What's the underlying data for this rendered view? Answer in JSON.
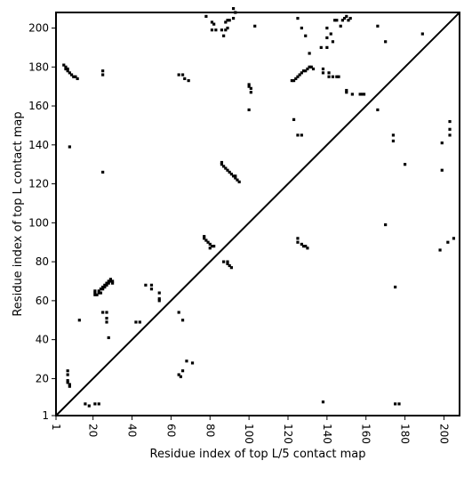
{
  "chart_data": {
    "type": "scatter",
    "title": "",
    "xlabel": "Residue index of top L/5 contact map",
    "ylabel": "Residue index of top L contact map",
    "xlim": [
      1,
      208
    ],
    "ylim": [
      1,
      208
    ],
    "xticks": [
      1,
      20,
      40,
      60,
      80,
      100,
      120,
      140,
      160,
      180,
      200
    ],
    "yticks": [
      1,
      20,
      40,
      60,
      80,
      100,
      120,
      140,
      160,
      180,
      200
    ],
    "diagonal": true,
    "grid": false,
    "marker_color": "#000000",
    "series": [
      {
        "values": [
          [
            5,
            181
          ],
          [
            6,
            180
          ],
          [
            6,
            179
          ],
          [
            7,
            179
          ],
          [
            7,
            178
          ],
          [
            8,
            177
          ],
          [
            9,
            176
          ],
          [
            10,
            175
          ],
          [
            11,
            175
          ],
          [
            12,
            174
          ],
          [
            8,
            139
          ],
          [
            7,
            24
          ],
          [
            7,
            22
          ],
          [
            7,
            19
          ],
          [
            7,
            18
          ],
          [
            8,
            17
          ],
          [
            8,
            16
          ],
          [
            16,
            7
          ],
          [
            18,
            6
          ],
          [
            21,
            7
          ],
          [
            23,
            7
          ],
          [
            25,
            178
          ],
          [
            25,
            176
          ],
          [
            25,
            126
          ],
          [
            25,
            54
          ],
          [
            27,
            54
          ],
          [
            27,
            51
          ],
          [
            27,
            49
          ],
          [
            28,
            41
          ],
          [
            13,
            50
          ],
          [
            21,
            65
          ],
          [
            21,
            64
          ],
          [
            21,
            63
          ],
          [
            22,
            63
          ],
          [
            23,
            64
          ],
          [
            23,
            65
          ],
          [
            24,
            64
          ],
          [
            24,
            66
          ],
          [
            25,
            66
          ],
          [
            25,
            67
          ],
          [
            26,
            67
          ],
          [
            26,
            68
          ],
          [
            27,
            68
          ],
          [
            27,
            69
          ],
          [
            28,
            69
          ],
          [
            28,
            70
          ],
          [
            29,
            70
          ],
          [
            29,
            71
          ],
          [
            30,
            70
          ],
          [
            30,
            69
          ],
          [
            42,
            49
          ],
          [
            44,
            49
          ],
          [
            47,
            68
          ],
          [
            50,
            68
          ],
          [
            50,
            66
          ],
          [
            54,
            64
          ],
          [
            54,
            61
          ],
          [
            54,
            60
          ],
          [
            64,
            54
          ],
          [
            65,
            21
          ],
          [
            66,
            24
          ],
          [
            64,
            22
          ],
          [
            66,
            50
          ],
          [
            68,
            29
          ],
          [
            71,
            28
          ],
          [
            64,
            176
          ],
          [
            66,
            176
          ],
          [
            67,
            174
          ],
          [
            69,
            173
          ],
          [
            77,
            93
          ],
          [
            77,
            92
          ],
          [
            78,
            91
          ],
          [
            79,
            90
          ],
          [
            80,
            89
          ],
          [
            81,
            88
          ],
          [
            82,
            88
          ],
          [
            80,
            87
          ],
          [
            78,
            206
          ],
          [
            81,
            203
          ],
          [
            82,
            202
          ],
          [
            81,
            199
          ],
          [
            83,
            199
          ],
          [
            86,
            199
          ],
          [
            88,
            199
          ],
          [
            87,
            196
          ],
          [
            89,
            200
          ],
          [
            88,
            203
          ],
          [
            89,
            204
          ],
          [
            90,
            204
          ],
          [
            92,
            205
          ],
          [
            93,
            208
          ],
          [
            92,
            210
          ],
          [
            86,
            131
          ],
          [
            86,
            130
          ],
          [
            87,
            129
          ],
          [
            88,
            128
          ],
          [
            89,
            127
          ],
          [
            90,
            126
          ],
          [
            91,
            125
          ],
          [
            92,
            124
          ],
          [
            93,
            124
          ],
          [
            93,
            123
          ],
          [
            94,
            122
          ],
          [
            95,
            121
          ],
          [
            87,
            80
          ],
          [
            89,
            80
          ],
          [
            89,
            79
          ],
          [
            90,
            78
          ],
          [
            91,
            77
          ],
          [
            100,
            171
          ],
          [
            100,
            170
          ],
          [
            101,
            169
          ],
          [
            101,
            167
          ],
          [
            100,
            158
          ],
          [
            103,
            201
          ],
          [
            122,
            173
          ],
          [
            123,
            173
          ],
          [
            124,
            174
          ],
          [
            125,
            175
          ],
          [
            126,
            176
          ],
          [
            127,
            177
          ],
          [
            128,
            178
          ],
          [
            129,
            178
          ],
          [
            130,
            179
          ],
          [
            131,
            180
          ],
          [
            132,
            180
          ],
          [
            133,
            179
          ],
          [
            123,
            153
          ],
          [
            125,
            145
          ],
          [
            127,
            145
          ],
          [
            125,
            92
          ],
          [
            125,
            90
          ],
          [
            127,
            89
          ],
          [
            128,
            88
          ],
          [
            129,
            88
          ],
          [
            130,
            87
          ],
          [
            125,
            205
          ],
          [
            127,
            200
          ],
          [
            129,
            196
          ],
          [
            131,
            187
          ],
          [
            137,
            190
          ],
          [
            138,
            179
          ],
          [
            138,
            177
          ],
          [
            140,
            200
          ],
          [
            140,
            195
          ],
          [
            140,
            190
          ],
          [
            141,
            177
          ],
          [
            141,
            175
          ],
          [
            143,
            175
          ],
          [
            145,
            175
          ],
          [
            146,
            175
          ],
          [
            142,
            197
          ],
          [
            143,
            193
          ],
          [
            144,
            204
          ],
          [
            145,
            204
          ],
          [
            147,
            201
          ],
          [
            148,
            204
          ],
          [
            149,
            205
          ],
          [
            150,
            206
          ],
          [
            151,
            204
          ],
          [
            152,
            205
          ],
          [
            150,
            168
          ],
          [
            150,
            167
          ],
          [
            153,
            166
          ],
          [
            157,
            166
          ],
          [
            158,
            166
          ],
          [
            159,
            166
          ],
          [
            166,
            201
          ],
          [
            166,
            158
          ],
          [
            170,
            193
          ],
          [
            174,
            145
          ],
          [
            174,
            142
          ],
          [
            180,
            130
          ],
          [
            189,
            197
          ],
          [
            199,
            141
          ],
          [
            203,
            148
          ],
          [
            203,
            145
          ],
          [
            203,
            152
          ],
          [
            199,
            127
          ],
          [
            198,
            86
          ],
          [
            202,
            90
          ],
          [
            205,
            92
          ],
          [
            138,
            8
          ],
          [
            170,
            99
          ],
          [
            175,
            67
          ],
          [
            175,
            7
          ],
          [
            177,
            7
          ]
        ]
      }
    ]
  }
}
